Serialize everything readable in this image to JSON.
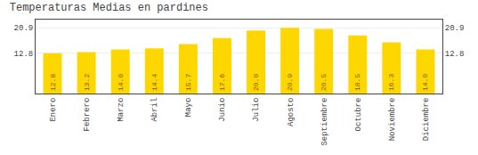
{
  "chart_data": {
    "type": "bar",
    "title": "Temperaturas Medias en pardines",
    "categories": [
      "Enero",
      "Febrero",
      "Marzo",
      "Abril",
      "Mayo",
      "Junio",
      "Julio",
      "Agosto",
      "Septiembre",
      "Octubre",
      "Noviembre",
      "Diciembre"
    ],
    "values": [
      12.8,
      13.2,
      14.0,
      14.4,
      15.7,
      17.6,
      20.0,
      20.9,
      20.5,
      18.5,
      16.3,
      14.0
    ],
    "value_labels": [
      "12.8",
      "13.2",
      "14.0",
      "14.4",
      "15.7",
      "17.6",
      "20.0",
      "20.9",
      "20.5",
      "18.5",
      "16.3",
      "14.0"
    ],
    "color": "#FFD700",
    "ylim": [
      0,
      23.5
    ],
    "yticks": [
      12.8,
      20.9
    ],
    "grid": true,
    "data_labels": true
  }
}
